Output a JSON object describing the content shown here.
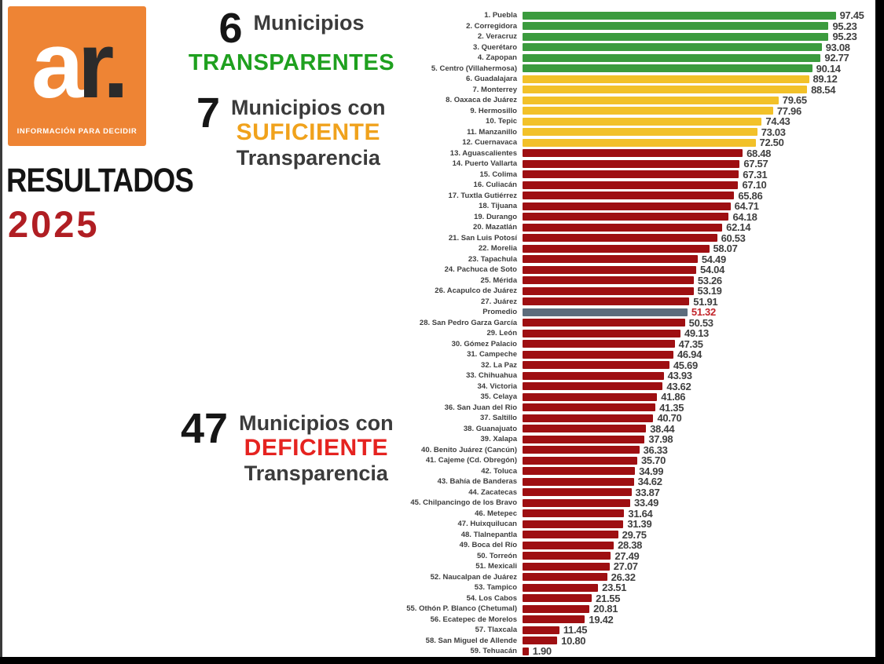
{
  "logo": {
    "letter_a": "a",
    "letter_r": "r.",
    "tagline": "INFORMACIÓN PARA DECIDIR"
  },
  "title": {
    "line1": "RESULTADOS",
    "line2": "2025"
  },
  "groups": {
    "transparent": {
      "count": "6",
      "line1": "Municipios",
      "emphasis": "TRANSPARENTES"
    },
    "sufficient": {
      "count": "7",
      "line1": "Municipios con",
      "emphasis": "SUFICIENTE",
      "line2": "Transparencia"
    },
    "deficient": {
      "count": "47",
      "line1": "Municipios con",
      "emphasis": "DEFICIENTE",
      "line2": "Transparencia"
    }
  },
  "colors": {
    "bar_transparente": "#3B9B3E",
    "bar_suficiente": "#F2C129",
    "bar_deficiente": "#9E0F12",
    "bar_promedio": "#5C6C7C",
    "value_default": "#3f3f3f",
    "value_promedio": "#C2242A",
    "accent_green": "#1FA01F",
    "accent_orange": "#F0A21C",
    "accent_red": "#E52320",
    "logo_orange": "#EE8434",
    "year_red": "#B01E23"
  },
  "chart_data": {
    "type": "bar",
    "orientation": "horizontal",
    "xlim": [
      0,
      100
    ],
    "grid": false,
    "legend": false,
    "value_labels": "end-of-bar, two decimals",
    "category_meaning": {
      "t": "transparente (verde)",
      "s": "suficiente (amarillo)",
      "d": "deficiente (rojo)",
      "p": "promedio (gris)"
    },
    "bars": [
      {
        "label": "1. Puebla",
        "value": 97.45,
        "cat": "t"
      },
      {
        "label": "2. Corregidora",
        "value": 95.23,
        "cat": "t"
      },
      {
        "label": "2. Veracruz",
        "value": 95.23,
        "cat": "t"
      },
      {
        "label": "3. Querétaro",
        "value": 93.08,
        "cat": "t"
      },
      {
        "label": "4. Zapopan",
        "value": 92.77,
        "cat": "t"
      },
      {
        "label": "5. Centro (Villahermosa)",
        "value": 90.14,
        "cat": "t"
      },
      {
        "label": "6. Guadalajara",
        "value": 89.12,
        "cat": "s"
      },
      {
        "label": "7. Monterrey",
        "value": 88.54,
        "cat": "s"
      },
      {
        "label": "8. Oaxaca de Juárez",
        "value": 79.65,
        "cat": "s"
      },
      {
        "label": "9. Hermosillo",
        "value": 77.96,
        "cat": "s"
      },
      {
        "label": "10. Tepic",
        "value": 74.43,
        "cat": "s"
      },
      {
        "label": "11. Manzanillo",
        "value": 73.03,
        "cat": "s"
      },
      {
        "label": "12. Cuernavaca",
        "value": 72.5,
        "cat": "s"
      },
      {
        "label": "13. Aguascalientes",
        "value": 68.48,
        "cat": "d"
      },
      {
        "label": "14. Puerto Vallarta",
        "value": 67.57,
        "cat": "d"
      },
      {
        "label": "15. Colima",
        "value": 67.31,
        "cat": "d"
      },
      {
        "label": "16. Culiacán",
        "value": 67.1,
        "cat": "d"
      },
      {
        "label": "17. Tuxtla Gutiérrez",
        "value": 65.86,
        "cat": "d"
      },
      {
        "label": "18. Tijuana",
        "value": 64.71,
        "cat": "d"
      },
      {
        "label": "19. Durango",
        "value": 64.18,
        "cat": "d"
      },
      {
        "label": "20. Mazatlán",
        "value": 62.14,
        "cat": "d"
      },
      {
        "label": "21. San Luis Potosí",
        "value": 60.53,
        "cat": "d"
      },
      {
        "label": "22. Morelia",
        "value": 58.07,
        "cat": "d"
      },
      {
        "label": "23. Tapachula",
        "value": 54.49,
        "cat": "d"
      },
      {
        "label": "24. Pachuca de Soto",
        "value": 54.04,
        "cat": "d"
      },
      {
        "label": "25. Mérida",
        "value": 53.26,
        "cat": "d"
      },
      {
        "label": "26. Acapulco de Juárez",
        "value": 53.19,
        "cat": "d"
      },
      {
        "label": "27. Juárez",
        "value": 51.91,
        "cat": "d"
      },
      {
        "label": "Promedio",
        "value": 51.32,
        "cat": "p"
      },
      {
        "label": "28. San Pedro Garza García",
        "value": 50.53,
        "cat": "d"
      },
      {
        "label": "29. León",
        "value": 49.13,
        "cat": "d"
      },
      {
        "label": "30. Gómez Palacio",
        "value": 47.35,
        "cat": "d"
      },
      {
        "label": "31. Campeche",
        "value": 46.94,
        "cat": "d"
      },
      {
        "label": "32. La Paz",
        "value": 45.69,
        "cat": "d"
      },
      {
        "label": "33. Chihuahua",
        "value": 43.93,
        "cat": "d"
      },
      {
        "label": "34. Victoria",
        "value": 43.62,
        "cat": "d"
      },
      {
        "label": "35. Celaya",
        "value": 41.86,
        "cat": "d"
      },
      {
        "label": "36. San Juan del Rio",
        "value": 41.35,
        "cat": "d"
      },
      {
        "label": "37. Saltillo",
        "value": 40.7,
        "cat": "d"
      },
      {
        "label": "38. Guanajuato",
        "value": 38.44,
        "cat": "d"
      },
      {
        "label": "39. Xalapa",
        "value": 37.98,
        "cat": "d"
      },
      {
        "label": "40. Benito Juárez (Cancún)",
        "value": 36.33,
        "cat": "d"
      },
      {
        "label": "41. Cajeme (Cd. Obregón)",
        "value": 35.7,
        "cat": "d"
      },
      {
        "label": "42. Toluca",
        "value": 34.99,
        "cat": "d"
      },
      {
        "label": "43. Bahía de Banderas",
        "value": 34.62,
        "cat": "d"
      },
      {
        "label": "44. Zacatecas",
        "value": 33.87,
        "cat": "d"
      },
      {
        "label": "45. Chilpancingo de los Bravo",
        "value": 33.49,
        "cat": "d"
      },
      {
        "label": "46. Metepec",
        "value": 31.64,
        "cat": "d"
      },
      {
        "label": "47. Huixquilucan",
        "value": 31.39,
        "cat": "d"
      },
      {
        "label": "48. Tlalnepantla",
        "value": 29.75,
        "cat": "d"
      },
      {
        "label": "49. Boca del Río",
        "value": 28.38,
        "cat": "d"
      },
      {
        "label": "50. Torreón",
        "value": 27.49,
        "cat": "d"
      },
      {
        "label": "51. Mexicali",
        "value": 27.07,
        "cat": "d"
      },
      {
        "label": "52. Naucalpan de Juárez",
        "value": 26.32,
        "cat": "d"
      },
      {
        "label": "53. Tampico",
        "value": 23.51,
        "cat": "d"
      },
      {
        "label": "54. Los Cabos",
        "value": 21.55,
        "cat": "d"
      },
      {
        "label": "55. Othón P. Blanco (Chetumal)",
        "value": 20.81,
        "cat": "d"
      },
      {
        "label": "56. Ecatepec de Morelos",
        "value": 19.42,
        "cat": "d"
      },
      {
        "label": "57. Tlaxcala",
        "value": 11.45,
        "cat": "d"
      },
      {
        "label": "58. San Miguel de Allende",
        "value": 10.8,
        "cat": "d"
      },
      {
        "label": "59. Tehuacán",
        "value": 1.9,
        "cat": "d"
      }
    ]
  }
}
